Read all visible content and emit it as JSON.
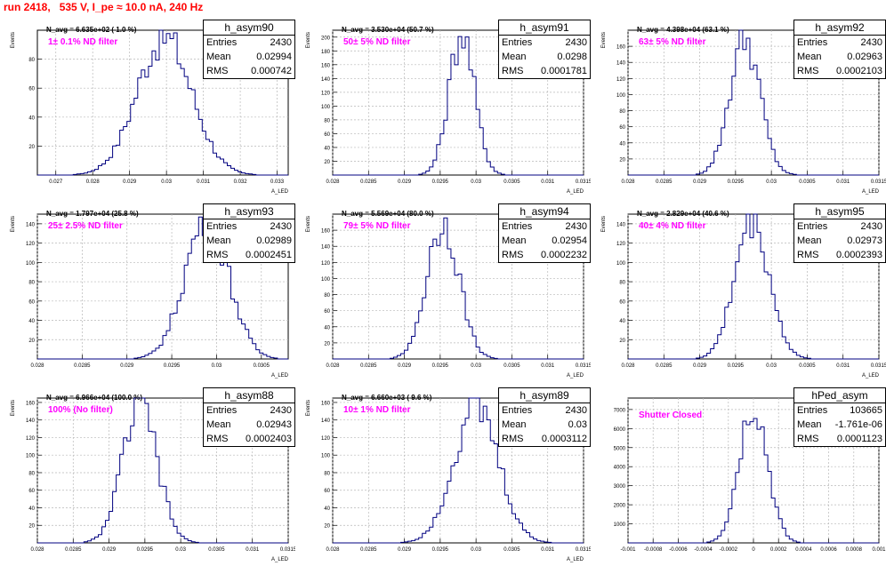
{
  "header": {
    "title": "run 2418,   535 V, I_pe ≈ 10.0 nA, 240 Hz"
  },
  "colors": {
    "title": "#ff0000",
    "histogram": "#000080",
    "note": "#ff00ff",
    "grid": "#b8b8b8"
  },
  "chart_data": [
    {
      "type": "histogram",
      "name": "h_asym90",
      "y_axis_label": "Events",
      "x_axis_label": "A_LED",
      "navg": "N_avg = 6.635e+02 ( 1.0 %)",
      "note": "1± 0.1% ND filter",
      "stats": {
        "entries": "2430",
        "mean": "0.02994",
        "rms": "0.000742"
      },
      "xlim": [
        0.0265,
        0.0333
      ],
      "ylim": [
        0,
        100
      ],
      "x_ticks": [
        "0.027",
        "0.028",
        "0.029",
        "0.03",
        "0.031",
        "0.032",
        "0.033"
      ],
      "x_tick_values": [
        0.027,
        0.028,
        0.029,
        0.03,
        0.031,
        0.032,
        0.033
      ],
      "y_ticks": [
        20,
        40,
        60,
        80
      ],
      "mean": 0.02994,
      "sigma": 0.000742,
      "peak": 95
    },
    {
      "type": "histogram",
      "name": "h_asym91",
      "y_axis_label": "Events",
      "x_axis_label": "A_LED",
      "navg": "N_avg = 3.530e+04 (50.7 %)",
      "note": "50± 5% ND filter",
      "stats": {
        "entries": "2430",
        "mean": "0.0298",
        "rms": "0.0001781"
      },
      "xlim": [
        0.028,
        0.0315
      ],
      "ylim": [
        0,
        210
      ],
      "x_ticks": [
        "0.028",
        "0.0285",
        "0.029",
        "0.0295",
        "0.03",
        "0.0305",
        "0.031",
        "0.0315"
      ],
      "x_tick_values": [
        0.028,
        0.0285,
        0.029,
        0.0295,
        0.03,
        0.0305,
        0.031,
        0.0315
      ],
      "y_ticks": [
        20,
        40,
        60,
        80,
        100,
        120,
        140,
        160,
        180,
        200
      ],
      "mean": 0.0298,
      "sigma": 0.0001781,
      "peak": 205
    },
    {
      "type": "histogram",
      "name": "h_asym92",
      "y_axis_label": "Events",
      "x_axis_label": "A_LED",
      "navg": "N_avg = 4.398e+04 (63.1 %)",
      "note": "63± 5% ND filter",
      "stats": {
        "entries": "2430",
        "mean": "0.02963",
        "rms": "0.0002103"
      },
      "xlim": [
        0.028,
        0.0315
      ],
      "ylim": [
        0,
        180
      ],
      "x_ticks": [
        "0.028",
        "0.0285",
        "0.029",
        "0.0295",
        "0.03",
        "0.0305",
        "0.031",
        "0.0315"
      ],
      "x_tick_values": [
        0.028,
        0.0285,
        0.029,
        0.0295,
        0.03,
        0.0305,
        0.031,
        0.0315
      ],
      "y_ticks": [
        20,
        40,
        60,
        80,
        100,
        120,
        140,
        160
      ],
      "mean": 0.02963,
      "sigma": 0.0002103,
      "peak": 170
    },
    {
      "type": "histogram",
      "name": "h_asym93",
      "y_axis_label": "Events",
      "x_axis_label": "A_LED",
      "navg": "N_avg = 1.797e+04 (25.8 %)",
      "note": "25± 2.5% ND filter",
      "stats": {
        "entries": "2430",
        "mean": "0.02989",
        "rms": "0.0002451"
      },
      "xlim": [
        0.028,
        0.0308
      ],
      "ylim": [
        0,
        150
      ],
      "x_ticks": [
        "0.028",
        "0.0285",
        "0.029",
        "0.0295",
        "0.03",
        "0.0305"
      ],
      "x_tick_values": [
        0.028,
        0.0285,
        0.029,
        0.0295,
        0.03,
        0.0305
      ],
      "y_ticks": [
        20,
        40,
        60,
        80,
        100,
        120,
        140
      ],
      "mean": 0.02989,
      "sigma": 0.0002451,
      "peak": 145
    },
    {
      "type": "histogram",
      "name": "h_asym94",
      "y_axis_label": "Events",
      "x_axis_label": "A_LED",
      "navg": "N_avg = 5.569e+04 (80.0 %)",
      "note": "79± 5% ND filter",
      "stats": {
        "entries": "2430",
        "mean": "0.02954",
        "rms": "0.0002232"
      },
      "xlim": [
        0.028,
        0.0315
      ],
      "ylim": [
        0,
        180
      ],
      "x_ticks": [
        "0.028",
        "0.0285",
        "0.029",
        "0.0295",
        "0.03",
        "0.0305",
        "0.031",
        "0.0315"
      ],
      "x_tick_values": [
        0.028,
        0.0285,
        0.029,
        0.0295,
        0.03,
        0.0305,
        0.031,
        0.0315
      ],
      "y_ticks": [
        20,
        40,
        60,
        80,
        100,
        120,
        140,
        160
      ],
      "mean": 0.02954,
      "sigma": 0.0002232,
      "peak": 170
    },
    {
      "type": "histogram",
      "name": "h_asym95",
      "y_axis_label": "Events",
      "x_axis_label": "A_LED",
      "navg": "N_avg = 2.829e+04 (40.6 %)",
      "note": "40± 4% ND filter",
      "stats": {
        "entries": "2430",
        "mean": "0.02973",
        "rms": "0.0002393"
      },
      "xlim": [
        0.028,
        0.0315
      ],
      "ylim": [
        0,
        150
      ],
      "x_ticks": [
        "0.028",
        "0.0285",
        "0.029",
        "0.0295",
        "0.03",
        "0.0305",
        "0.031",
        "0.0315"
      ],
      "x_tick_values": [
        0.028,
        0.0285,
        0.029,
        0.0295,
        0.03,
        0.0305,
        0.031,
        0.0315
      ],
      "y_ticks": [
        20,
        40,
        60,
        80,
        100,
        120,
        140
      ],
      "mean": 0.02973,
      "sigma": 0.0002393,
      "peak": 145
    },
    {
      "type": "histogram",
      "name": "h_asym88",
      "y_axis_label": "Events",
      "x_axis_label": "A_LED",
      "navg": "N_avg = 6.966e+04 (100.0 %)",
      "note": "100% (No filter)",
      "stats": {
        "entries": "2430",
        "mean": "0.02943",
        "rms": "0.0002403"
      },
      "xlim": [
        0.028,
        0.0315
      ],
      "ylim": [
        0,
        165
      ],
      "x_ticks": [
        "0.028",
        "0.0285",
        "0.029",
        "0.0295",
        "0.03",
        "0.0305",
        "0.031",
        "0.0315"
      ],
      "x_tick_values": [
        0.028,
        0.0285,
        0.029,
        0.0295,
        0.03,
        0.0305,
        0.031,
        0.0315
      ],
      "y_ticks": [
        20,
        40,
        60,
        80,
        100,
        120,
        140,
        160
      ],
      "mean": 0.02943,
      "sigma": 0.0002403,
      "peak": 158
    },
    {
      "type": "histogram",
      "name": "h_asym89",
      "y_axis_label": "Events",
      "x_axis_label": "A_LED",
      "navg": "N_avg = 6.660e+03 ( 9.6 %)",
      "note": "10± 1% ND filter",
      "stats": {
        "entries": "2430",
        "mean": "0.03",
        "rms": "0.0003112"
      },
      "xlim": [
        0.028,
        0.0315
      ],
      "ylim": [
        0,
        165
      ],
      "x_ticks": [
        "0.028",
        "0.0285",
        "0.029",
        "0.0295",
        "0.03",
        "0.0305",
        "0.031",
        "0.0315"
      ],
      "x_tick_values": [
        0.028,
        0.0285,
        0.029,
        0.0295,
        0.03,
        0.0305,
        0.031,
        0.0315
      ],
      "y_ticks": [
        20,
        40,
        60,
        80,
        100,
        120,
        140,
        160
      ],
      "mean": 0.03,
      "sigma": 0.0003112,
      "peak": 155
    },
    {
      "type": "histogram",
      "name": "hPed_asym",
      "y_axis_label": "",
      "x_axis_label": "",
      "navg": "",
      "note": "Shutter Closed",
      "stats": {
        "entries": "103665",
        "mean": "-1.761e-06",
        "rms": "0.0001123"
      },
      "xlim": [
        -0.001,
        0.001
      ],
      "ylim": [
        0,
        7600
      ],
      "x_ticks": [
        "-0.001",
        "-0.0008",
        "-0.0006",
        "-0.0004",
        "-0.0002",
        "0",
        "0.0002",
        "0.0004",
        "0.0006",
        "0.0008",
        "0.001"
      ],
      "x_tick_values": [
        -0.001,
        -0.0008,
        -0.0006,
        -0.0004,
        -0.0002,
        0,
        0.0002,
        0.0004,
        0.0006,
        0.0008,
        0.001
      ],
      "y_ticks": [
        1000,
        2000,
        3000,
        4000,
        5000,
        6000,
        7000
      ],
      "mean": -1.761e-06,
      "sigma": 0.0001123,
      "peak": 7300
    }
  ]
}
